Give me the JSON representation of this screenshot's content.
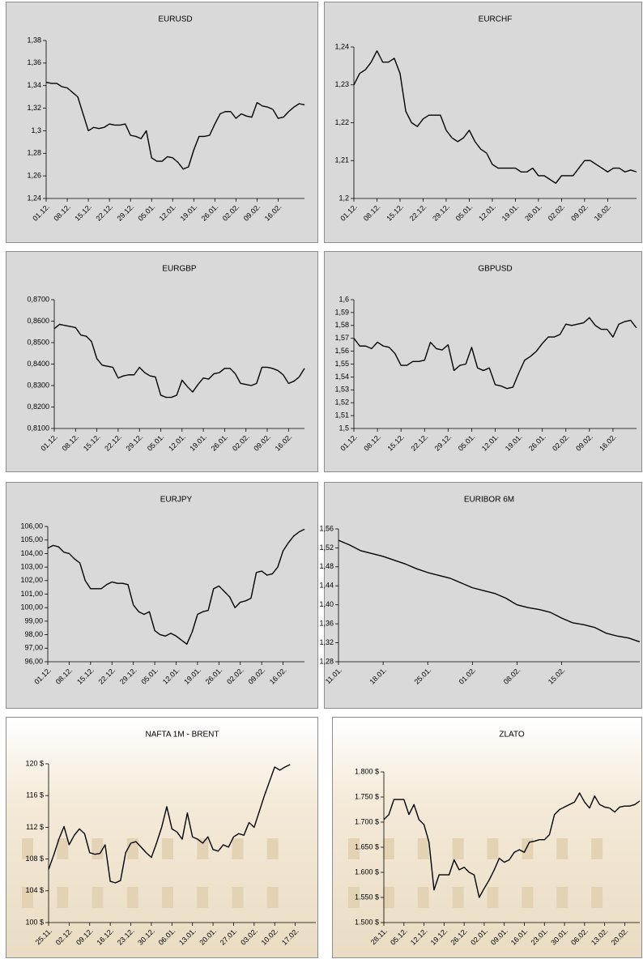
{
  "chart_data": [
    {
      "type": "line",
      "title": "EURUSD",
      "color": "#000000",
      "categories": [
        "01.12.",
        null,
        null,
        null,
        "08.12.",
        null,
        null,
        null,
        "15.12.",
        null,
        null,
        null,
        "22.12.",
        null,
        null,
        null,
        "29.12.",
        null,
        null,
        null,
        "05.01.",
        null,
        null,
        null,
        "12.01.",
        null,
        null,
        null,
        "19.01.",
        null,
        null,
        null,
        "26.01.",
        null,
        null,
        null,
        "02.02.",
        null,
        null,
        null,
        "09.02.",
        null,
        null,
        null,
        "16.02.",
        null,
        null,
        null,
        null,
        null
      ],
      "values": [
        1.343,
        1.342,
        1.342,
        1.339,
        1.338,
        1.334,
        1.33,
        1.315,
        1.3,
        1.303,
        1.302,
        1.303,
        1.306,
        1.305,
        1.305,
        1.306,
        1.296,
        1.295,
        1.293,
        1.3,
        1.276,
        1.273,
        1.273,
        1.277,
        1.276,
        1.272,
        1.266,
        1.268,
        1.283,
        1.295,
        1.295,
        1.296,
        1.306,
        1.315,
        1.317,
        1.317,
        1.311,
        1.315,
        1.313,
        1.312,
        1.325,
        1.322,
        1.321,
        1.319,
        1.311,
        1.312,
        1.317,
        1.321,
        1.324,
        1.323
      ],
      "ylim": [
        1.24,
        1.38
      ],
      "yticks": [
        {
          "value": 1.24,
          "label": "1,24"
        },
        {
          "value": 1.26,
          "label": "1,26"
        },
        {
          "value": 1.28,
          "label": "1,28"
        },
        {
          "value": 1.3,
          "label": "1,3"
        },
        {
          "value": 1.32,
          "label": "1,32"
        },
        {
          "value": 1.34,
          "label": "1,34"
        },
        {
          "value": 1.36,
          "label": "1,36"
        },
        {
          "value": 1.38,
          "label": "1,38"
        }
      ]
    },
    {
      "type": "line",
      "title": "EURCHF",
      "color": "#000000",
      "categories": [
        "01.12.",
        null,
        null,
        null,
        "08.12.",
        null,
        null,
        null,
        "15.12.",
        null,
        null,
        null,
        "22.12.",
        null,
        null,
        null,
        "29.12.",
        null,
        null,
        null,
        "05.01.",
        null,
        null,
        null,
        "12.01.",
        null,
        null,
        null,
        "19.01.",
        null,
        null,
        null,
        "26.01.",
        null,
        null,
        null,
        "02.02.",
        null,
        null,
        null,
        "09.02.",
        null,
        null,
        null,
        "16.02.",
        null,
        null,
        null,
        null,
        null
      ],
      "values": [
        1.23,
        1.233,
        1.234,
        1.236,
        1.239,
        1.236,
        1.236,
        1.237,
        1.233,
        1.223,
        1.22,
        1.219,
        1.221,
        1.222,
        1.222,
        1.222,
        1.218,
        1.216,
        1.215,
        1.216,
        1.218,
        1.215,
        1.213,
        1.212,
        1.209,
        1.208,
        1.208,
        1.208,
        1.208,
        1.207,
        1.207,
        1.208,
        1.206,
        1.206,
        1.205,
        1.204,
        1.206,
        1.206,
        1.206,
        1.208,
        1.21,
        1.21,
        1.209,
        1.208,
        1.207,
        1.208,
        1.208,
        1.207,
        1.2075,
        1.207
      ],
      "ylim": [
        1.2,
        1.24
      ],
      "yticks": [
        {
          "value": 1.2,
          "label": "1,2"
        },
        {
          "value": 1.21,
          "label": "1,21"
        },
        {
          "value": 1.22,
          "label": "1,22"
        },
        {
          "value": 1.23,
          "label": "1,23"
        },
        {
          "value": 1.24,
          "label": "1,24"
        }
      ]
    },
    {
      "type": "line",
      "title": "EURGBP",
      "color": "#000000",
      "categories": [
        "01.12.",
        null,
        null,
        null,
        "08.12.",
        null,
        null,
        null,
        "15.12.",
        null,
        null,
        null,
        "22.12.",
        null,
        null,
        null,
        "29.12.",
        null,
        null,
        null,
        "05.01.",
        null,
        null,
        null,
        "12.01.",
        null,
        null,
        null,
        "19.01.",
        null,
        null,
        null,
        "26.01.",
        null,
        null,
        null,
        "02.02.",
        null,
        null,
        null,
        "09.02.",
        null,
        null,
        null,
        "16.02.",
        null,
        null,
        null
      ],
      "values": [
        0.8565,
        0.8585,
        0.858,
        0.8575,
        0.857,
        0.8535,
        0.853,
        0.8505,
        0.8425,
        0.8395,
        0.839,
        0.8385,
        0.8335,
        0.8345,
        0.835,
        0.835,
        0.8385,
        0.836,
        0.8345,
        0.834,
        0.8255,
        0.8245,
        0.8245,
        0.8255,
        0.8325,
        0.8295,
        0.827,
        0.8305,
        0.8335,
        0.833,
        0.8355,
        0.836,
        0.838,
        0.838,
        0.8355,
        0.831,
        0.8305,
        0.83,
        0.831,
        0.8385,
        0.8385,
        0.838,
        0.837,
        0.835,
        0.831,
        0.832,
        0.834,
        0.838
      ],
      "ylim": [
        0.81,
        0.87
      ],
      "yticks": [
        {
          "value": 0.81,
          "label": "0,8100"
        },
        {
          "value": 0.82,
          "label": "0,8200"
        },
        {
          "value": 0.83,
          "label": "0,8300"
        },
        {
          "value": 0.84,
          "label": "0,8400"
        },
        {
          "value": 0.85,
          "label": "0,8500"
        },
        {
          "value": 0.86,
          "label": "0,8600"
        },
        {
          "value": 0.87,
          "label": "0,8700"
        }
      ]
    },
    {
      "type": "line",
      "title": "GBPUSD",
      "color": "#000000",
      "categories": [
        "01.12.",
        null,
        null,
        null,
        "08.12.",
        null,
        null,
        null,
        "15.12.",
        null,
        null,
        null,
        "22.12.",
        null,
        null,
        null,
        "29.12.",
        null,
        null,
        null,
        "05.01.",
        null,
        null,
        null,
        "12.01.",
        null,
        null,
        null,
        "19.01.",
        null,
        null,
        null,
        "26.01.",
        null,
        null,
        null,
        "02.02.",
        null,
        null,
        null,
        "09.02.",
        null,
        null,
        null,
        "16.02.",
        null,
        null,
        null,
        null
      ],
      "values": [
        1.57,
        1.564,
        1.564,
        1.562,
        1.567,
        1.564,
        1.563,
        1.558,
        1.549,
        1.549,
        1.552,
        1.552,
        1.553,
        1.567,
        1.562,
        1.561,
        1.565,
        1.545,
        1.549,
        1.55,
        1.563,
        1.547,
        1.545,
        1.547,
        1.534,
        1.533,
        1.531,
        1.532,
        1.543,
        1.553,
        1.556,
        1.56,
        1.566,
        1.571,
        1.571,
        1.573,
        1.581,
        1.58,
        1.581,
        1.582,
        1.586,
        1.58,
        1.577,
        1.577,
        1.571,
        1.581,
        1.583,
        1.584,
        1.578
      ],
      "ylim": [
        1.5,
        1.6
      ],
      "yticks": [
        {
          "value": 1.5,
          "label": "1,5"
        },
        {
          "value": 1.51,
          "label": "1,51"
        },
        {
          "value": 1.52,
          "label": "1,52"
        },
        {
          "value": 1.53,
          "label": "1,53"
        },
        {
          "value": 1.54,
          "label": "1,54"
        },
        {
          "value": 1.55,
          "label": "1,55"
        },
        {
          "value": 1.56,
          "label": "1,56"
        },
        {
          "value": 1.57,
          "label": "1,57"
        },
        {
          "value": 1.58,
          "label": "1,58"
        },
        {
          "value": 1.59,
          "label": "1,59"
        },
        {
          "value": 1.6,
          "label": "1,6"
        }
      ]
    },
    {
      "type": "line",
      "title": "EURJPY",
      "color": "#000000",
      "categories": [
        "01.12.",
        null,
        null,
        null,
        "08.12.",
        null,
        null,
        null,
        "15.12.",
        null,
        null,
        null,
        "22.12.",
        null,
        null,
        null,
        "29.12.",
        null,
        null,
        null,
        "05.01.",
        null,
        null,
        null,
        "12.01.",
        null,
        null,
        null,
        "19.01.",
        null,
        null,
        null,
        "26.01.",
        null,
        null,
        null,
        "02.02.",
        null,
        null,
        null,
        "09.02.",
        null,
        null,
        null,
        "16.02.",
        null,
        null,
        null,
        null
      ],
      "values": [
        104.4,
        104.6,
        104.5,
        104.1,
        104.0,
        103.6,
        103.3,
        102.0,
        101.4,
        101.4,
        101.4,
        101.7,
        101.9,
        101.8,
        101.8,
        101.7,
        100.2,
        99.7,
        99.5,
        99.7,
        98.3,
        98.0,
        97.9,
        98.1,
        97.9,
        97.6,
        97.3,
        98.2,
        99.5,
        99.7,
        99.8,
        101.4,
        101.6,
        101.2,
        100.8,
        100.0,
        100.4,
        100.5,
        100.7,
        102.6,
        102.7,
        102.4,
        102.5,
        103.0,
        104.2,
        104.8,
        105.3,
        105.6,
        105.8
      ],
      "ylim": [
        96,
        106
      ],
      "yticks": [
        {
          "value": 96,
          "label": "96,00"
        },
        {
          "value": 97,
          "label": "97,00"
        },
        {
          "value": 98,
          "label": "98,00"
        },
        {
          "value": 99,
          "label": "99,00"
        },
        {
          "value": 100,
          "label": "100,00"
        },
        {
          "value": 101,
          "label": "101,00"
        },
        {
          "value": 102,
          "label": "102,00"
        },
        {
          "value": 103,
          "label": "103,00"
        },
        {
          "value": 104,
          "label": "104,00"
        },
        {
          "value": 105,
          "label": "105,00"
        },
        {
          "value": 106,
          "label": "106,00"
        }
      ]
    },
    {
      "type": "line",
      "title": "EURIBOR 6M",
      "color": "#000000",
      "categories": [
        "11.01.",
        null,
        null,
        null,
        "18.01.",
        null,
        null,
        null,
        "25.01.",
        null,
        null,
        null,
        "01.02.",
        null,
        null,
        null,
        "08.02.",
        null,
        null,
        null,
        "15.02.",
        null,
        null,
        null,
        null,
        null,
        null,
        null
      ],
      "values": [
        1.536,
        1.526,
        1.514,
        1.508,
        1.502,
        1.494,
        1.486,
        1.476,
        1.468,
        1.462,
        1.456,
        1.446,
        1.436,
        1.43,
        1.424,
        1.414,
        1.4,
        1.394,
        1.39,
        1.384,
        1.372,
        1.362,
        1.358,
        1.352,
        1.34,
        1.334,
        1.33,
        1.322
      ],
      "ylim": [
        1.28,
        1.56
      ],
      "yticks": [
        {
          "value": 1.28,
          "label": "1,28"
        },
        {
          "value": 1.32,
          "label": "1,32"
        },
        {
          "value": 1.36,
          "label": "1,36"
        },
        {
          "value": 1.4,
          "label": "1,40"
        },
        {
          "value": 1.44,
          "label": "1,44"
        },
        {
          "value": 1.48,
          "label": "1,48"
        },
        {
          "value": 1.52,
          "label": "1,52"
        },
        {
          "value": 1.56,
          "label": "1,56"
        }
      ]
    },
    {
      "type": "line",
      "title": "NAFTA 1M - BRENT",
      "color": "#000000",
      "categories": [
        "25.11.",
        null,
        null,
        null,
        "02.12.",
        null,
        null,
        null,
        "09.12.",
        null,
        null,
        null,
        "16.12.",
        null,
        null,
        null,
        "23.12.",
        null,
        null,
        null,
        "30.12.",
        null,
        null,
        null,
        "06.01.",
        null,
        null,
        null,
        "13.01.",
        null,
        null,
        null,
        "20.01.",
        null,
        null,
        null,
        "27.01.",
        null,
        null,
        null,
        "03.02.",
        null,
        null,
        null,
        "10.02.",
        null,
        null,
        null,
        "17.02.",
        null,
        null,
        null,
        null
      ],
      "values": [
        106.7,
        108.5,
        110.5,
        112.1,
        109.8,
        111.0,
        111.8,
        111.2,
        108.8,
        108.6,
        108.7,
        109.8,
        105.2,
        105.0,
        105.3,
        108.8,
        110.0,
        110.2,
        109.5,
        108.8,
        108.2,
        110.0,
        112.0,
        114.6,
        111.8,
        111.4,
        110.5,
        113.8,
        110.8,
        110.5,
        110.0,
        110.8,
        109.2,
        109.0,
        109.8,
        109.5,
        110.8,
        111.2,
        111.0,
        112.6,
        112.0,
        114.0,
        116.0,
        117.8,
        119.6,
        119.2,
        119.6,
        119.9,
        null,
        null,
        null,
        null,
        null
      ],
      "ylim": [
        100,
        120
      ],
      "yticks": [
        {
          "value": 100,
          "label": "100 $"
        },
        {
          "value": 104,
          "label": "104 $"
        },
        {
          "value": 108,
          "label": "108 $"
        },
        {
          "value": 112,
          "label": "112 $"
        },
        {
          "value": 116,
          "label": "116 $"
        },
        {
          "value": 120,
          "label": "120 $"
        }
      ]
    },
    {
      "type": "line",
      "title": "ZLATO",
      "color": "#000000",
      "categories": [
        "28.11.",
        null,
        null,
        null,
        "05.12.",
        null,
        null,
        null,
        "12.12.",
        null,
        null,
        null,
        "19.12.",
        null,
        null,
        null,
        "26.12.",
        null,
        null,
        null,
        "02.01.",
        null,
        null,
        null,
        "09.01.",
        null,
        null,
        null,
        "16.01.",
        null,
        null,
        null,
        "23.01.",
        null,
        null,
        null,
        "30.01.",
        null,
        null,
        null,
        "06.02.",
        null,
        null,
        null,
        "13.02.",
        null,
        null,
        null,
        "20.02.",
        null,
        null,
        null
      ],
      "values": [
        1705,
        1715,
        1745,
        1745,
        1745,
        1715,
        1735,
        1705,
        1695,
        1660,
        1565,
        1595,
        1595,
        1595,
        1625,
        1605,
        1610,
        1600,
        1595,
        1550,
        1568,
        1585,
        1605,
        1628,
        1620,
        1625,
        1640,
        1645,
        1640,
        1660,
        1662,
        1665,
        1665,
        1675,
        1715,
        1725,
        1730,
        1735,
        1740,
        1758,
        1740,
        1728,
        1752,
        1735,
        1730,
        1728,
        1720,
        1730,
        1732,
        1732,
        1735,
        1742
      ],
      "ylim": [
        1500,
        1800
      ],
      "yticks": [
        {
          "value": 1500,
          "label": "1.500 $"
        },
        {
          "value": 1550,
          "label": "1.550 $"
        },
        {
          "value": 1600,
          "label": "1.600 $"
        },
        {
          "value": 1650,
          "label": "1.650 $"
        },
        {
          "value": 1700,
          "label": "1.700 $"
        },
        {
          "value": 1750,
          "label": "1.750 $"
        },
        {
          "value": 1800,
          "label": "1.800 $"
        }
      ]
    }
  ]
}
